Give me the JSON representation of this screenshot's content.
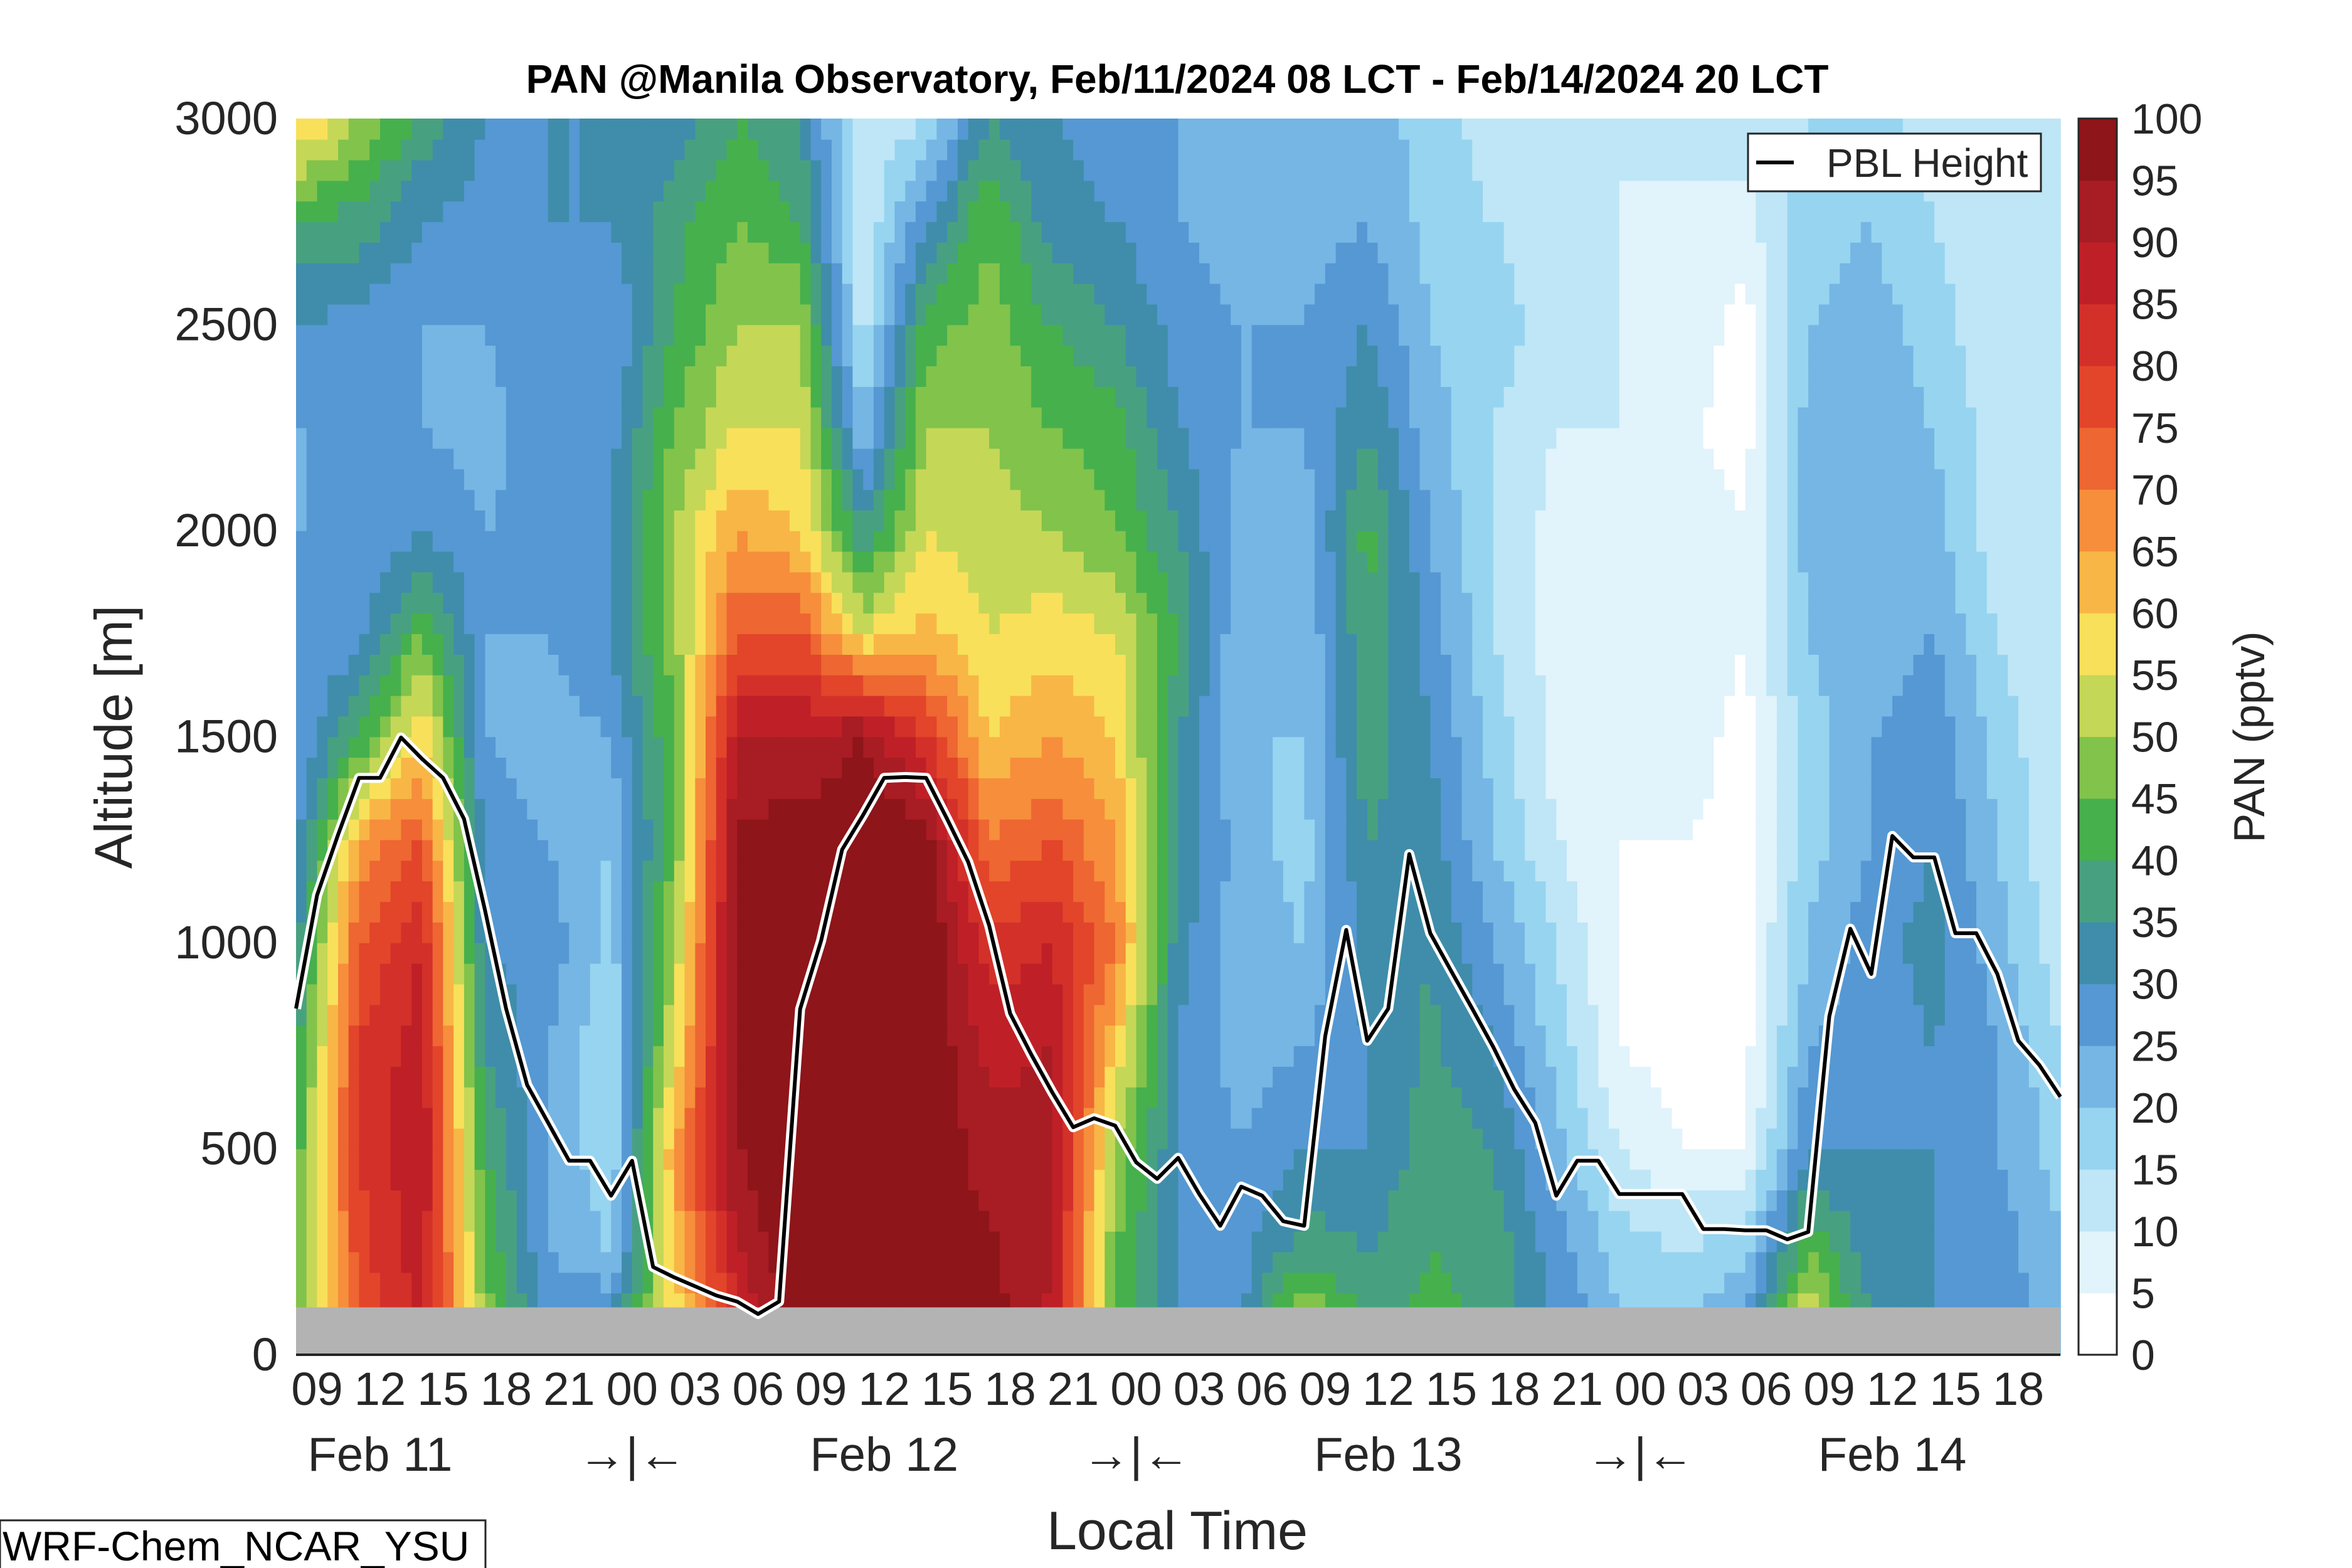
{
  "chart_data": {
    "type": "heatmap",
    "title": "PAN @Manila Observatory, Feb/11/2024 08 LCT - Feb/14/2024 20 LCT",
    "xlabel": "Local Time",
    "ylabel": "Altitude [m]",
    "colorbar_label": "PAN (pptv)",
    "model_label": "WRF-Chem_NCAR_YSU",
    "legend": {
      "entries": [
        "PBL Height"
      ],
      "placement": "top-right"
    },
    "ylim": [
      0,
      3000
    ],
    "yticks": [
      0,
      500,
      1000,
      1500,
      2000,
      2500,
      3000
    ],
    "ytick_labels": [
      "0",
      "500",
      "1000",
      "1500",
      "2000",
      "2500",
      "3000"
    ],
    "x_hours_range": [
      0,
      84
    ],
    "xtick_hours": [
      1,
      4,
      7,
      10,
      13,
      16,
      19,
      22,
      25,
      28,
      31,
      34,
      37,
      40,
      43,
      46,
      49,
      52,
      55,
      58,
      61,
      64,
      67,
      70,
      73,
      76,
      79,
      82
    ],
    "xtick_labels": [
      "09",
      "12",
      "15",
      "18",
      "21",
      "00",
      "03",
      "06",
      "09",
      "12",
      "15",
      "18",
      "21",
      "00",
      "03",
      "06",
      "09",
      "12",
      "15",
      "18",
      "21",
      "00",
      "03",
      "06",
      "09",
      "12",
      "15",
      "18"
    ],
    "day_labels": [
      {
        "hour": 4,
        "text": "Feb 11"
      },
      {
        "hour": 16,
        "text": "→|←"
      },
      {
        "hour": 28,
        "text": "Feb 12"
      },
      {
        "hour": 40,
        "text": "→|←"
      },
      {
        "hour": 52,
        "text": "Feb 13"
      },
      {
        "hour": 64,
        "text": "→|←"
      },
      {
        "hour": 76,
        "text": "Feb 14"
      }
    ],
    "clim": [
      0,
      100
    ],
    "colorbar_ticks": [
      "0",
      "5",
      "10",
      "15",
      "20",
      "25",
      "30",
      "35",
      "40",
      "45",
      "50",
      "55",
      "60",
      "65",
      "70",
      "75",
      "80",
      "85",
      "90",
      "95",
      "100"
    ],
    "level_colors": [
      "#ffffff",
      "#e1f3fb",
      "#bee6f6",
      "#97d4f0",
      "#75b6e4",
      "#5598d3",
      "#3f8daa",
      "#47a180",
      "#46b04d",
      "#82c34b",
      "#c5d757",
      "#f9e05a",
      "#f8b646",
      "#f68e3c",
      "#ee6631",
      "#e2452a",
      "#d3302a",
      "#bf2027",
      "#a81c23",
      "#8e1519"
    ],
    "field": {
      "hours": [
        0,
        3,
        6,
        9,
        12,
        15,
        18,
        21,
        24,
        27,
        30,
        33,
        36,
        39,
        42,
        45,
        48,
        51,
        54,
        57,
        60,
        63,
        66,
        69,
        72,
        75,
        78,
        81,
        84
      ],
      "altitudes": [
        0,
        250,
        500,
        750,
        1000,
        1250,
        1500,
        1750,
        2000,
        2250,
        2500,
        2750,
        3000
      ],
      "values": [
        [
          45,
          45,
          42,
          38,
          32,
          28,
          25,
          25,
          25,
          25,
          30,
          40,
          62
        ],
        [
          75,
          78,
          80,
          80,
          75,
          65,
          40,
          28,
          25,
          25,
          28,
          38,
          50
        ],
        [
          85,
          88,
          90,
          88,
          85,
          75,
          60,
          45,
          30,
          25,
          25,
          30,
          38
        ],
        [
          50,
          45,
          40,
          35,
          30,
          28,
          25,
          25,
          25,
          22,
          25,
          28,
          30
        ],
        [
          30,
          25,
          25,
          25,
          28,
          25,
          22,
          25,
          28,
          30,
          30,
          30,
          30
        ],
        [
          35,
          20,
          15,
          15,
          18,
          20,
          25,
          30,
          30,
          28,
          25,
          30,
          30
        ],
        [
          55,
          60,
          65,
          55,
          50,
          45,
          45,
          48,
          50,
          45,
          40,
          38,
          32
        ],
        [
          80,
          90,
          95,
          98,
          98,
          96,
          90,
          75,
          65,
          55,
          50,
          45,
          40
        ],
        [
          100,
          100,
          100,
          100,
          100,
          98,
          90,
          75,
          60,
          55,
          50,
          40,
          35
        ],
        [
          100,
          100,
          100,
          100,
          100,
          100,
          95,
          55,
          35,
          20,
          12,
          10,
          10
        ],
        [
          100,
          100,
          100,
          100,
          100,
          98,
          80,
          62,
          55,
          50,
          42,
          30,
          15
        ],
        [
          98,
          96,
          92,
          88,
          82,
          70,
          60,
          55,
          52,
          50,
          48,
          45,
          35
        ],
        [
          88,
          90,
          92,
          90,
          85,
          75,
          65,
          58,
          50,
          45,
          40,
          32,
          30
        ],
        [
          45,
          45,
          50,
          60,
          70,
          65,
          60,
          55,
          45,
          42,
          35,
          30,
          28
        ],
        [
          30,
          30,
          30,
          30,
          32,
          35,
          35,
          40,
          35,
          30,
          28,
          25,
          25
        ],
        [
          30,
          28,
          25,
          22,
          22,
          22,
          20,
          20,
          22,
          25,
          25,
          22,
          20
        ],
        [
          60,
          38,
          30,
          25,
          20,
          18,
          20,
          20,
          22,
          25,
          25,
          22,
          20
        ],
        [
          40,
          35,
          30,
          30,
          32,
          35,
          38,
          40,
          42,
          35,
          30,
          25,
          22
        ],
        [
          42,
          40,
          38,
          36,
          35,
          32,
          30,
          28,
          25,
          22,
          20,
          18,
          18
        ],
        [
          40,
          38,
          35,
          30,
          25,
          20,
          18,
          15,
          15,
          15,
          18,
          15,
          12
        ],
        [
          30,
          28,
          22,
          18,
          15,
          10,
          8,
          8,
          8,
          10,
          12,
          12,
          12
        ],
        [
          22,
          18,
          10,
          5,
          5,
          5,
          5,
          5,
          8,
          10,
          10,
          10,
          10
        ],
        [
          22,
          15,
          5,
          3,
          3,
          5,
          8,
          8,
          8,
          6,
          8,
          8,
          12
        ],
        [
          28,
          18,
          5,
          3,
          3,
          3,
          3,
          5,
          5,
          3,
          3,
          8,
          12
        ],
        [
          60,
          45,
          30,
          25,
          20,
          18,
          18,
          20,
          22,
          22,
          20,
          18,
          15
        ],
        [
          35,
          32,
          30,
          28,
          28,
          25,
          25,
          22,
          22,
          22,
          22,
          20,
          18
        ],
        [
          30,
          30,
          30,
          30,
          32,
          30,
          28,
          25,
          22,
          20,
          18,
          15,
          12
        ],
        [
          30,
          28,
          25,
          25,
          22,
          20,
          18,
          15,
          12,
          12,
          10,
          10,
          10
        ],
        [
          22,
          20,
          18,
          15,
          12,
          10,
          10,
          10,
          10,
          10,
          10,
          10,
          10
        ]
      ]
    },
    "series": [
      {
        "name": "PBL Height",
        "hours": [
          0,
          1,
          2,
          3,
          4,
          5,
          6,
          7,
          8,
          9,
          10,
          11,
          12,
          13,
          14,
          15,
          16,
          17,
          18,
          19,
          20,
          21,
          22,
          23,
          24,
          25,
          26,
          27,
          28,
          29,
          30,
          31,
          32,
          33,
          34,
          35,
          36,
          37,
          38,
          39,
          40,
          41,
          42,
          43,
          44,
          45,
          46,
          47,
          48,
          49,
          50,
          51,
          52,
          53,
          54,
          55,
          56,
          57,
          58,
          59,
          60,
          61,
          62,
          63,
          64,
          65,
          66,
          67,
          68,
          69,
          70,
          71,
          72,
          73,
          74,
          75,
          76,
          77,
          78,
          79,
          80,
          81,
          82,
          83,
          84
        ],
        "values": [
          840,
          1115,
          1262,
          1400,
          1400,
          1498,
          1446,
          1400,
          1300,
          1078,
          840,
          655,
          563,
          471,
          471,
          386,
          471,
          213,
          188,
          166,
          144,
          129,
          99,
          129,
          839,
          1005,
          1226,
          1310,
          1400,
          1402,
          1400,
          1300,
          1196,
          1042,
          828,
          729,
          637,
          552,
          574,
          556,
          467,
          427,
          478,
          390,
          313,
          408,
          386,
          324,
          313,
          773,
          1031,
          762,
          840,
          1215,
          1023,
          931,
          840,
          747,
          644,
          563,
          386,
          471,
          471,
          390,
          390,
          390,
          390,
          305,
          305,
          302,
          302,
          280,
          298,
          821,
          1034,
          924,
          1259,
          1207,
          1207,
          1023,
          1023,
          924,
          762,
          703,
          626
        ]
      }
    ],
    "terrain_top_m": 115,
    "terrain_color": "#b3b3b3"
  }
}
